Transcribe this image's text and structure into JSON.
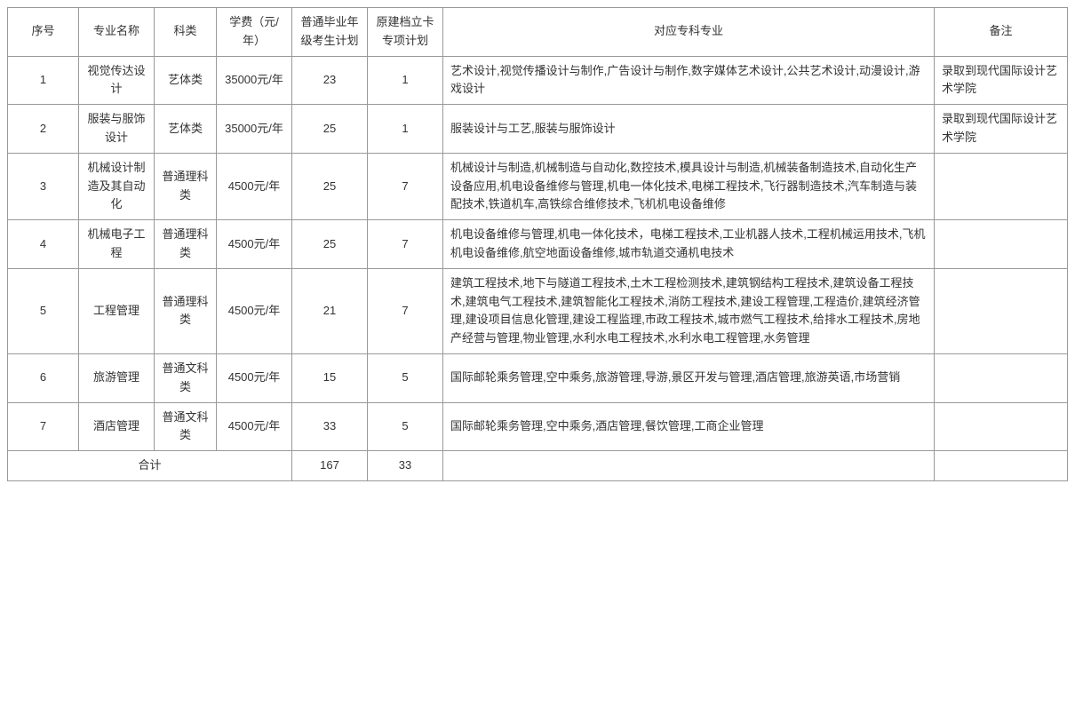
{
  "columns": [
    "序号",
    "专业名称",
    "科类",
    "学费（元/年）",
    "普通毕业年级考生计划",
    "原建档立卡专项计划",
    "对应专科专业",
    "备注"
  ],
  "rows": [
    {
      "seq": "1",
      "name": "视觉传达设计",
      "category": "艺体类",
      "fee": "35000元/年",
      "plan_general": "23",
      "plan_special": "1",
      "majors": "艺术设计,视觉传播设计与制作,广告设计与制作,数字媒体艺术设计,公共艺术设计,动漫设计,游戏设计",
      "remark": "录取到现代国际设计艺术学院"
    },
    {
      "seq": "2",
      "name": "服装与服饰设计",
      "category": "艺体类",
      "fee": "35000元/年",
      "plan_general": "25",
      "plan_special": "1",
      "majors": "服装设计与工艺,服装与服饰设计",
      "remark": "录取到现代国际设计艺术学院"
    },
    {
      "seq": "3",
      "name": "机械设计制造及其自动化",
      "category": "普通理科类",
      "fee": "4500元/年",
      "plan_general": "25",
      "plan_special": "7",
      "majors": "机械设计与制造,机械制造与自动化,数控技术,模具设计与制造,机械装备制造技术,自动化生产设备应用,机电设备维修与管理,机电一体化技术,电梯工程技术,飞行器制造技术,汽车制造与装配技术,铁道机车,高铁综合维修技术,飞机机电设备维修",
      "remark": ""
    },
    {
      "seq": "4",
      "name": "机械电子工程",
      "category": "普通理科类",
      "fee": "4500元/年",
      "plan_general": "25",
      "plan_special": "7",
      "majors": "机电设备维修与管理,机电一体化技术，电梯工程技术,工业机器人技术,工程机械运用技术,飞机机电设备维修,航空地面设备维修,城市轨道交通机电技术",
      "remark": ""
    },
    {
      "seq": "5",
      "name": "工程管理",
      "category": "普通理科类",
      "fee": "4500元/年",
      "plan_general": "21",
      "plan_special": "7",
      "majors": "建筑工程技术,地下与隧道工程技术,土木工程检测技术,建筑钢结构工程技术,建筑设备工程技术,建筑电气工程技术,建筑智能化工程技术,消防工程技术,建设工程管理,工程造价,建筑经济管理,建设项目信息化管理,建设工程监理,市政工程技术,城市燃气工程技术,给排水工程技术,房地产经营与管理,物业管理,水利水电工程技术,水利水电工程管理,水务管理",
      "remark": ""
    },
    {
      "seq": "6",
      "name": "旅游管理",
      "category": "普通文科类",
      "fee": "4500元/年",
      "plan_general": "15",
      "plan_special": "5",
      "majors": "国际邮轮乘务管理,空中乘务,旅游管理,导游,景区开发与管理,酒店管理,旅游英语,市场营销",
      "remark": ""
    },
    {
      "seq": "7",
      "name": "酒店管理",
      "category": "普通文科类",
      "fee": "4500元/年",
      "plan_general": "33",
      "plan_special": "5",
      "majors": "国际邮轮乘务管理,空中乘务,酒店管理,餐饮管理,工商企业管理",
      "remark": ""
    }
  ],
  "total": {
    "label": "合计",
    "plan_general": "167",
    "plan_special": "33"
  }
}
